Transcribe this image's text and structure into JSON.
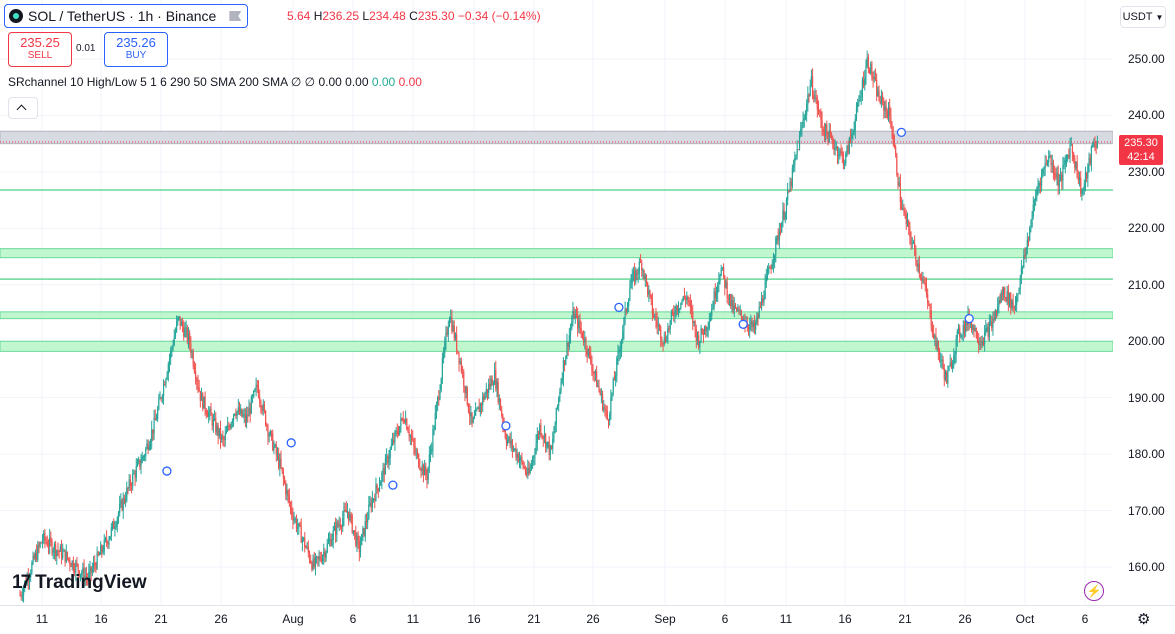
{
  "symbol": {
    "title": "SOL / TetherUS · 1h · Binance"
  },
  "ohlc": {
    "open_partial": "5.64",
    "high_label": "H",
    "high": "236.25",
    "low_label": "L",
    "low": "234.48",
    "close_label": "C",
    "close": "235.30",
    "change": "−0.34 (−0.14%)"
  },
  "trade": {
    "sell_price": "235.25",
    "sell_label": "SELL",
    "spread": "0.01",
    "buy_price": "235.26",
    "buy_label": "BUY"
  },
  "indicator": {
    "name": "SRchannel 10 High/Low 5 1 6 290 50 SMA 200 SMA",
    "v1": "∅",
    "v2": "∅",
    "v3": "0.00",
    "v4": "0.00",
    "v5": "0.00",
    "v6": "0.00"
  },
  "currency": {
    "label": "USDT",
    "icon": "chevron-down-icon"
  },
  "price_scale": {
    "ticks": [
      "250.00",
      "240.00",
      "230.00",
      "220.00",
      "210.00",
      "200.00",
      "190.00",
      "180.00",
      "170.00",
      "160.00"
    ]
  },
  "last_price": {
    "price": "235.30",
    "countdown": "42:14"
  },
  "time_scale": {
    "ticks": [
      "11",
      "16",
      "21",
      "26",
      "Aug",
      "6",
      "11",
      "16",
      "21",
      "26",
      "Sep",
      "6",
      "11",
      "16",
      "21",
      "26",
      "Oct",
      "6"
    ]
  },
  "branding": {
    "logo_mark": "17",
    "logo_text": "TradingView"
  },
  "colors": {
    "up": "#26a69a",
    "down": "#ef5350",
    "accent": "#2962ff",
    "band": "#b9f6ca",
    "band_line": "#69d99a",
    "resistance": "#c9c9cf"
  },
  "chart_data": {
    "type": "candlestick",
    "timeframe": "1h",
    "ylim": [
      155,
      257
    ],
    "x_ticks": [
      "11",
      "16",
      "21",
      "26",
      "Aug",
      "6",
      "11",
      "16",
      "21",
      "26",
      "Sep",
      "6",
      "11",
      "16",
      "21",
      "26",
      "Oct",
      "6"
    ],
    "close_path": [
      [
        0,
        155
      ],
      [
        2,
        165
      ],
      [
        4,
        162
      ],
      [
        6,
        158
      ],
      [
        8,
        166
      ],
      [
        10,
        176
      ],
      [
        11,
        180
      ],
      [
        12,
        186
      ],
      [
        13,
        195
      ],
      [
        14,
        204
      ],
      [
        15,
        200
      ],
      [
        16,
        190
      ],
      [
        17,
        186
      ],
      [
        18,
        182
      ],
      [
        19,
        188
      ],
      [
        20,
        186
      ],
      [
        21,
        192
      ],
      [
        22,
        184
      ],
      [
        23,
        178
      ],
      [
        24,
        170
      ],
      [
        25,
        165
      ],
      [
        26,
        160
      ],
      [
        27,
        163
      ],
      [
        28,
        167
      ],
      [
        29,
        170
      ],
      [
        30,
        163
      ],
      [
        31,
        171
      ],
      [
        32,
        176
      ],
      [
        33,
        182
      ],
      [
        34,
        187
      ],
      [
        35,
        180
      ],
      [
        36,
        176
      ],
      [
        37,
        190
      ],
      [
        38,
        205
      ],
      [
        39,
        196
      ],
      [
        40,
        185
      ],
      [
        41,
        190
      ],
      [
        42,
        194
      ],
      [
        43,
        183
      ],
      [
        44,
        180
      ],
      [
        45,
        176
      ],
      [
        46,
        185
      ],
      [
        47,
        180
      ],
      [
        48,
        195
      ],
      [
        49,
        205
      ],
      [
        50,
        200
      ],
      [
        51,
        193
      ],
      [
        52,
        186
      ],
      [
        53,
        198
      ],
      [
        54,
        210
      ],
      [
        55,
        214
      ],
      [
        56,
        205
      ],
      [
        57,
        200
      ],
      [
        58,
        206
      ],
      [
        59,
        208
      ],
      [
        60,
        200
      ],
      [
        61,
        204
      ],
      [
        62,
        213
      ],
      [
        63,
        206
      ],
      [
        64,
        204
      ],
      [
        65,
        202
      ],
      [
        66,
        210
      ],
      [
        67,
        218
      ],
      [
        68,
        226
      ],
      [
        69,
        236
      ],
      [
        70,
        246
      ],
      [
        71,
        238
      ],
      [
        72,
        235
      ],
      [
        73,
        232
      ],
      [
        74,
        240
      ],
      [
        75,
        250
      ],
      [
        76,
        243
      ],
      [
        77,
        240
      ],
      [
        78,
        224
      ],
      [
        79,
        217
      ],
      [
        80,
        210
      ],
      [
        81,
        200
      ],
      [
        82,
        193
      ],
      [
        83,
        201
      ],
      [
        84,
        204
      ],
      [
        85,
        200
      ],
      [
        86,
        203
      ],
      [
        87,
        209
      ],
      [
        88,
        206
      ],
      [
        89,
        216
      ],
      [
        90,
        227
      ],
      [
        91,
        233
      ],
      [
        92,
        228
      ],
      [
        93,
        235
      ],
      [
        94,
        226
      ],
      [
        95,
        235
      ],
      [
        96,
        235.3
      ]
    ],
    "sr_zones": [
      {
        "type": "resistance",
        "from": 235.0,
        "to": 237.2
      },
      {
        "type": "support-line",
        "from": 226.8,
        "to": 226.8
      },
      {
        "type": "support",
        "from": 214.8,
        "to": 216.4
      },
      {
        "type": "support-line",
        "from": 211.0,
        "to": 211.0
      },
      {
        "type": "support",
        "from": 204.0,
        "to": 205.2
      },
      {
        "type": "support",
        "from": 198.2,
        "to": 200.0
      }
    ],
    "markers": [
      [
        13,
        177
      ],
      [
        24,
        182
      ],
      [
        33,
        174.5
      ],
      [
        43,
        185
      ],
      [
        53,
        206
      ],
      [
        64,
        203
      ],
      [
        78,
        237
      ],
      [
        84,
        204
      ]
    ],
    "last_price": 235.3
  }
}
